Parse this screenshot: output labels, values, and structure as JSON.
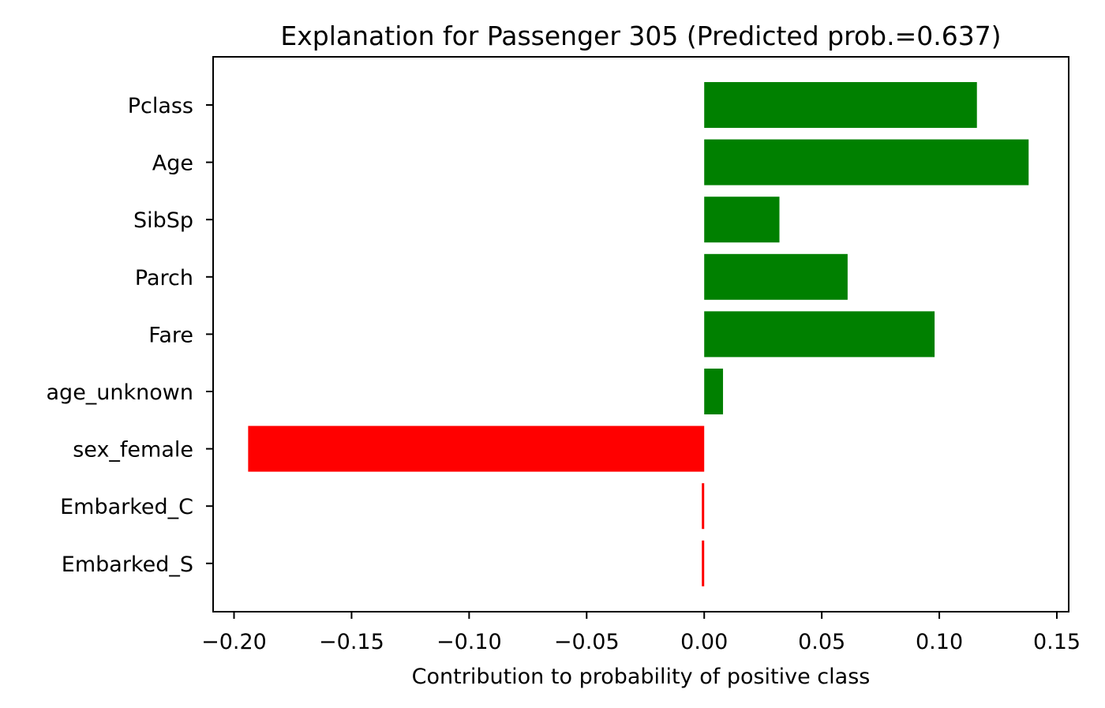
{
  "chart_data": {
    "type": "bar",
    "orientation": "horizontal",
    "title": "Explanation for Passenger 305 (Predicted prob.=0.637)",
    "xlabel": "Contribution to probability of positive class",
    "ylabel": "",
    "categories": [
      "Pclass",
      "Age",
      "SibSp",
      "Parch",
      "Fare",
      "age_unknown",
      "sex_female",
      "Embarked_C",
      "Embarked_S"
    ],
    "values": [
      0.116,
      0.138,
      0.032,
      0.061,
      0.098,
      0.008,
      -0.194,
      -0.001,
      -0.001
    ],
    "xlim": [
      -0.21,
      0.153
    ],
    "xticks": [
      -0.2,
      -0.15,
      -0.1,
      -0.05,
      0.0,
      0.05,
      0.1,
      0.15
    ],
    "xtick_labels": [
      "−0.20",
      "−0.15",
      "−0.10",
      "−0.05",
      "0.00",
      "0.05",
      "0.10",
      "0.15"
    ],
    "colors": {
      "positive": "#008000",
      "negative": "#ff0000"
    },
    "grid": false,
    "legend": "none"
  }
}
